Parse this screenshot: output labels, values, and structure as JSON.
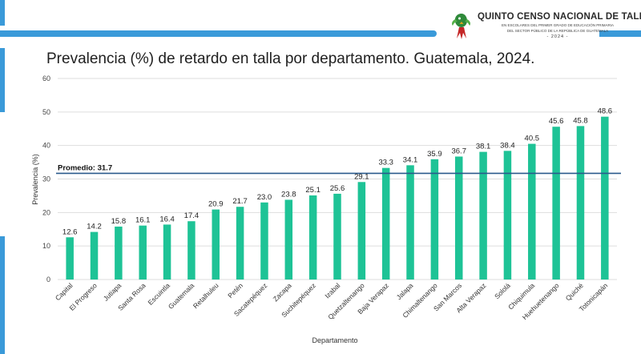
{
  "header": {
    "brand_title": "QUINTO CENSO NACIONAL DE TALLA",
    "brand_line1": "EN ESCOLARES DEL PRIMER GRADO DE EDUCACIÓN PRIMARIA",
    "brand_line2": "DEL SECTOR PÚBLICO DE LA REPÚBLICA DE GUATEMALA",
    "brand_year": "- 2024 -"
  },
  "colors": {
    "bar": "#1ec396",
    "reference_line": "#2b5a8c",
    "accent": "#3a9ad9",
    "grid": "#dddddd"
  },
  "chart_data": {
    "type": "bar",
    "title": "Prevalencia (%) de retardo en talla por departamento. Guatemala, 2024.",
    "xlabel": "Departamento",
    "ylabel": "Prevalencia (%)",
    "ylim": [
      0,
      60
    ],
    "yticks": [
      "0",
      "10",
      "20",
      "30",
      "40",
      "50",
      "60"
    ],
    "grid": true,
    "categories": [
      "Capital",
      "El Progreso",
      "Jutiapa",
      "Santa Rosa",
      "Escuintla",
      "Guatemala",
      "Retalhuleu",
      "Petén",
      "Sacatepéquez",
      "Zacapa",
      "Suchitepéquez",
      "Izabal",
      "Quetzaltenango",
      "Baja Verapaz",
      "Jalapa",
      "Chimaltenango",
      "San Marcos",
      "Alta Verapaz",
      "Sololá",
      "Chiquimula",
      "Huehuetenango",
      "Quiché",
      "Totonicapán"
    ],
    "values": [
      12.6,
      14.2,
      15.8,
      16.1,
      16.4,
      17.4,
      20.9,
      21.7,
      23.0,
      23.8,
      25.1,
      25.6,
      29.1,
      33.3,
      34.1,
      35.9,
      36.7,
      38.1,
      38.4,
      40.5,
      45.6,
      45.8,
      48.6
    ],
    "data_labels": [
      "12.6",
      "14.2",
      "15.8",
      "16.1",
      "16.4",
      "17.4",
      "20.9",
      "21.7",
      "23.0",
      "23.8",
      "25.1",
      "25.6",
      "29.1",
      "33.3",
      "34.1",
      "35.9",
      "36.7",
      "38.1",
      "38.4",
      "40.5",
      "45.6",
      "45.8",
      "48.6"
    ],
    "reference_line": {
      "label": "Promedio: 31.7",
      "value": 31.7
    }
  }
}
